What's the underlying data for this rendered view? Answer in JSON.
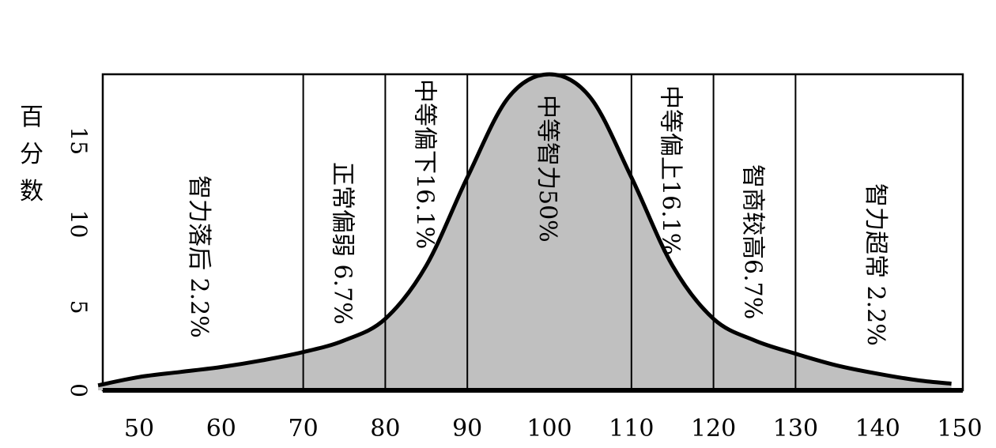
{
  "chart_data": {
    "type": "area",
    "title": "",
    "ylabel": "百分数",
    "xlabel": "",
    "xlim": [
      45,
      150
    ],
    "ylim": [
      0,
      19
    ],
    "x_ticks": [
      "50",
      "60",
      "70",
      "80",
      "90",
      "100",
      "110",
      "120",
      "130",
      "140",
      "150"
    ],
    "y_ticks": [
      "0",
      "5",
      "10",
      "15"
    ],
    "curve": {
      "x": [
        45,
        50,
        55,
        60,
        65,
        70,
        75,
        80,
        85,
        90,
        95,
        100,
        105,
        110,
        115,
        120,
        125,
        130,
        135,
        140,
        145,
        149
      ],
      "y": [
        0.3,
        0.8,
        1.1,
        1.4,
        1.8,
        2.3,
        3.0,
        4.3,
        7.5,
        12.8,
        17.6,
        19.0,
        17.6,
        12.8,
        7.5,
        4.3,
        3.0,
        2.2,
        1.5,
        1.0,
        0.6,
        0.4
      ]
    },
    "dividers": [
      70,
      80,
      90,
      110,
      120,
      130
    ],
    "bands": [
      {
        "x_from": 45,
        "x_to": 70,
        "label": "智力落后 2.2%"
      },
      {
        "x_from": 70,
        "x_to": 80,
        "label": "正常偏弱 6.7%"
      },
      {
        "x_from": 80,
        "x_to": 90,
        "label": "中等偏下16.1%"
      },
      {
        "x_from": 90,
        "x_to": 110,
        "label": "中等智力50%"
      },
      {
        "x_from": 110,
        "x_to": 120,
        "label": "中等偏上16.1%"
      },
      {
        "x_from": 120,
        "x_to": 130,
        "label": "智商较高6.7%"
      },
      {
        "x_from": 130,
        "x_to": 150,
        "label": "智力超常 2.2%"
      }
    ],
    "colors": {
      "fill": "#c0c0c0",
      "curve": "#000000",
      "frame": "#000000"
    }
  }
}
